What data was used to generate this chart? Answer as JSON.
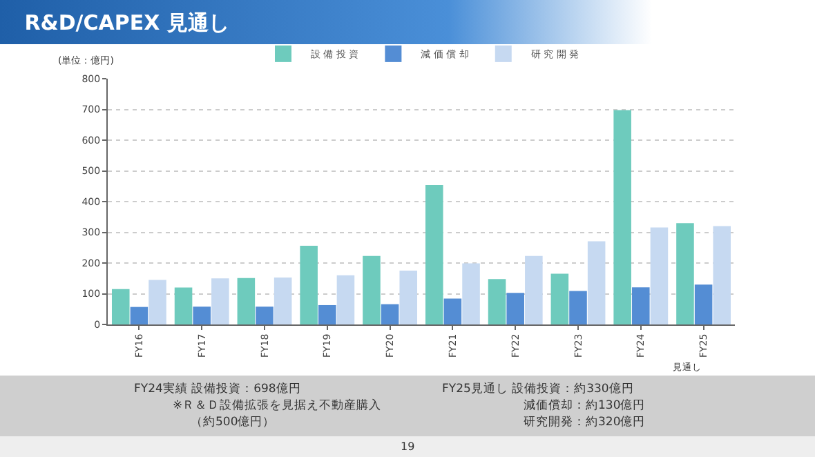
{
  "chart_data": {
    "type": "bar",
    "title": "R&D/CAPEX 見通し",
    "categories": [
      "FY16",
      "FY17",
      "FY18",
      "FY19",
      "FY20",
      "FY21",
      "FY22",
      "FY23",
      "FY24",
      "FY25"
    ],
    "series": [
      {
        "name": "設 備 投 資",
        "color": "#6ecbbd",
        "values": [
          115,
          120,
          151,
          256,
          223,
          454,
          148,
          165,
          698,
          330
        ]
      },
      {
        "name": "減 価 償 却",
        "color": "#548dd4",
        "values": [
          57,
          58,
          58,
          63,
          66,
          84,
          103,
          109,
          121,
          130
        ]
      },
      {
        "name": "研 究 開 発",
        "color": "#c6d9f1",
        "values": [
          145,
          150,
          153,
          160,
          175,
          199,
          223,
          271,
          316,
          320
        ]
      }
    ],
    "ylim": [
      0,
      800
    ],
    "yticks": [
      0,
      100,
      200,
      300,
      400,
      500,
      600,
      700,
      800
    ],
    "grid": "y",
    "legend": "top",
    "annotations": [
      "(単位：億円)",
      "見通し",
      "FY24実績 設備投資：698億円",
      "※Ｒ＆Ｄ設備拡張を見据え不動産購入",
      "（約500億円）",
      "FY25見通し 設備投資：約330億円",
      "減価償却：約130億円",
      "研究開発：約320億円",
      "19"
    ]
  }
}
